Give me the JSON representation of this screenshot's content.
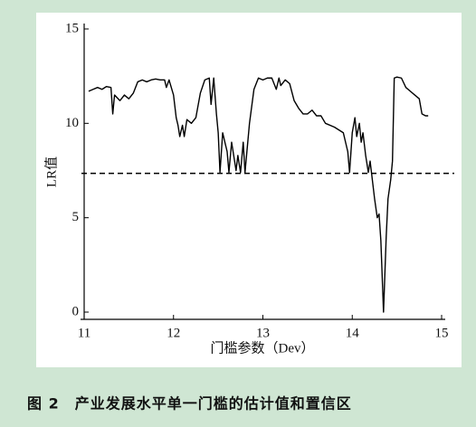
{
  "chart_data": {
    "type": "line",
    "x": [
      11.05,
      11.1,
      11.15,
      11.2,
      11.25,
      11.3,
      11.32,
      11.34,
      11.4,
      11.45,
      11.5,
      11.55,
      11.6,
      11.65,
      11.7,
      11.75,
      11.8,
      11.85,
      11.9,
      11.92,
      11.95,
      12.0,
      12.03,
      12.05,
      12.07,
      12.1,
      12.12,
      12.15,
      12.2,
      12.25,
      12.3,
      12.35,
      12.4,
      12.42,
      12.45,
      12.48,
      12.5,
      12.52,
      12.55,
      12.6,
      12.62,
      12.65,
      12.7,
      12.72,
      12.75,
      12.78,
      12.8,
      12.85,
      12.9,
      12.95,
      13.0,
      13.05,
      13.1,
      13.15,
      13.18,
      13.2,
      13.25,
      13.3,
      13.35,
      13.4,
      13.45,
      13.5,
      13.55,
      13.6,
      13.65,
      13.7,
      13.8,
      13.9,
      13.95,
      13.97,
      14.0,
      14.03,
      14.05,
      14.08,
      14.1,
      14.12,
      14.15,
      14.18,
      14.2,
      14.25,
      14.28,
      14.3,
      14.32,
      14.35,
      14.38,
      14.4,
      14.43,
      14.45,
      14.47,
      14.5,
      14.55,
      14.6,
      14.65,
      14.7,
      14.75,
      14.78,
      14.82,
      14.85
    ],
    "values": [
      11.7,
      11.8,
      11.9,
      11.8,
      11.95,
      11.9,
      10.5,
      11.5,
      11.2,
      11.5,
      11.3,
      11.6,
      12.2,
      12.3,
      12.2,
      12.3,
      12.35,
      12.3,
      12.3,
      11.9,
      12.3,
      11.5,
      10.3,
      9.9,
      9.3,
      9.9,
      9.3,
      10.2,
      10.0,
      10.3,
      11.6,
      12.3,
      12.4,
      11.0,
      12.4,
      10.5,
      9.5,
      7.4,
      9.5,
      8.5,
      7.4,
      9.0,
      7.5,
      8.3,
      7.4,
      9.0,
      7.4,
      10.0,
      11.8,
      12.4,
      12.3,
      12.4,
      12.4,
      11.8,
      12.4,
      12.0,
      12.3,
      12.1,
      11.2,
      10.8,
      10.5,
      10.5,
      10.7,
      10.4,
      10.4,
      10.0,
      9.8,
      9.5,
      8.5,
      7.4,
      9.5,
      10.3,
      9.3,
      10.0,
      9.0,
      9.5,
      8.3,
      7.4,
      8.0,
      6.0,
      5.0,
      5.2,
      3.8,
      0.0,
      4.0,
      6.0,
      7.0,
      8.0,
      12.4,
      12.45,
      12.4,
      11.9,
      11.7,
      11.5,
      11.3,
      10.5,
      10.4,
      10.4
    ],
    "color": "#000000",
    "threshold": 7.35,
    "xlim": [
      11,
      15
    ],
    "ylim": [
      0,
      15
    ],
    "xticks": [
      11,
      12,
      13,
      14,
      15
    ],
    "yticks": [
      0,
      5,
      10,
      15
    ],
    "xlabel": "门槛参数（Dev）",
    "ylabel": "LR值",
    "caption": "图 2　产业发展水平单一门槛的估计值和置信区"
  }
}
